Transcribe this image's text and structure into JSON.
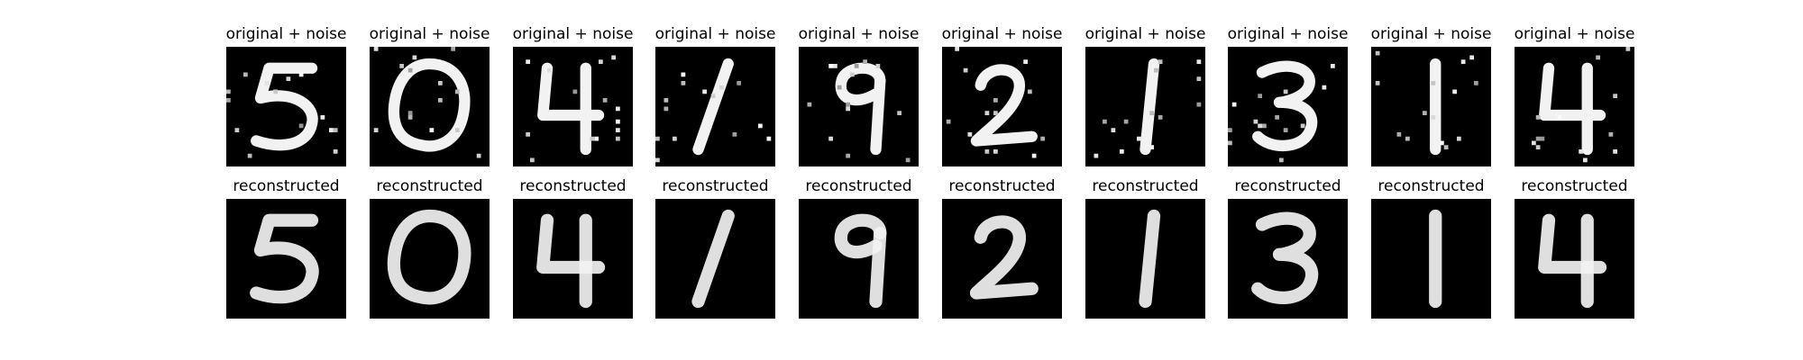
{
  "titles": {
    "noisy": "original + noise",
    "reconstructed": "reconstructed"
  },
  "digits": [
    "5",
    "0",
    "4",
    "1",
    "9",
    "2",
    "1",
    "3",
    "1",
    "4"
  ],
  "colors": {
    "background": "#ffffff",
    "image_background": "#000000",
    "stroke": "#f2f2f2",
    "noise": "#ffffff"
  }
}
